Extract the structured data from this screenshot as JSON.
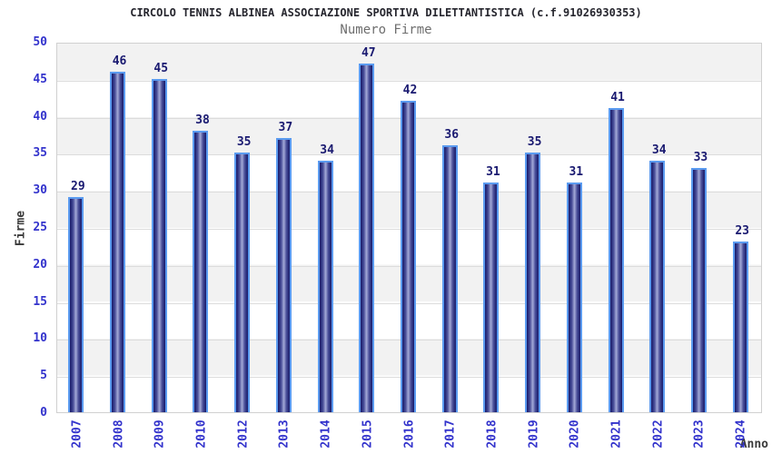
{
  "title": "CIRCOLO TENNIS ALBINEA ASSOCIAZIONE SPORTIVA DILETTANTISTICA (c.f.91026930353)",
  "subtitle": "Numero Firme",
  "chart_data": {
    "type": "bar",
    "title": "Numero Firme",
    "categories": [
      "2007",
      "2008",
      "2009",
      "2010",
      "2012",
      "2013",
      "2014",
      "2015",
      "2016",
      "2017",
      "2018",
      "2019",
      "2020",
      "2021",
      "2022",
      "2023",
      "2024"
    ],
    "values": [
      29,
      46,
      45,
      38,
      35,
      37,
      34,
      47,
      42,
      36,
      31,
      35,
      31,
      41,
      34,
      33,
      23
    ],
    "xlabel": "Anno",
    "ylabel": "Firme",
    "ylim": [
      0,
      50
    ],
    "yticks": [
      0,
      5,
      10,
      15,
      20,
      25,
      30,
      35,
      40,
      45,
      50
    ],
    "grid": "horizontal-bands",
    "legend": "none",
    "colors": {
      "title_color": "#26262e",
      "subtitle_color": "#6e6e6e",
      "tick_label": "#3333cc",
      "value_label": "#191970",
      "axis_title": "#3a3a3a",
      "bar_dark": "#1e2170",
      "bar_mid": "#4a4f99",
      "bar_light": "#a4aad8",
      "bar_border": "#5b9bf0",
      "band_fill": "#f2f2f2",
      "grid_line": "#dcdcdc",
      "plot_border": "#d0d0d0"
    }
  }
}
